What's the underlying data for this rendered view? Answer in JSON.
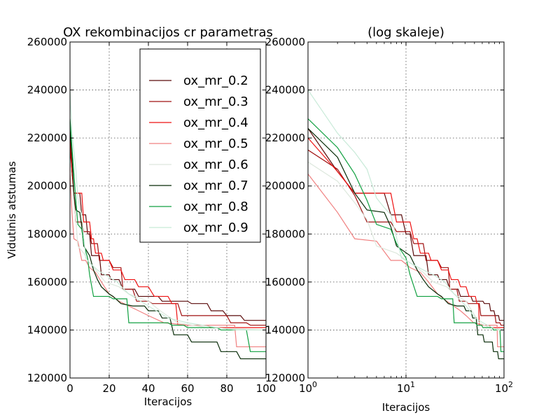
{
  "chart_data": [
    {
      "type": "line",
      "title": "OX rekombinacijos cr parametras",
      "xlabel": "Iteracijos",
      "ylabel": "Vidutinis atstumas",
      "xscale": "linear",
      "xlim": [
        0,
        100
      ],
      "ylim": [
        120000,
        260000
      ],
      "xticks": [
        0,
        20,
        40,
        60,
        80,
        100
      ],
      "xtick_labels": [
        "0",
        "20",
        "40",
        "60",
        "80",
        "100"
      ],
      "yticks": [
        120000,
        140000,
        160000,
        180000,
        200000,
        220000,
        240000,
        260000
      ],
      "ytick_labels": [
        "120000",
        "140000",
        "160000",
        "180000",
        "200000",
        "220000",
        "240000",
        "260000"
      ],
      "grid": true,
      "legend": "upper right"
    },
    {
      "type": "line",
      "title": "(log skaleje)",
      "xlabel": "Iteracijos",
      "ylabel": "",
      "xscale": "log",
      "xlim": [
        1,
        100
      ],
      "ylim": [
        120000,
        260000
      ],
      "xticks": [
        1,
        10,
        100
      ],
      "xtick_labels": [
        [
          "10",
          "0"
        ],
        [
          "10",
          "1"
        ],
        [
          "10",
          "2"
        ]
      ],
      "yticks": [
        120000,
        140000,
        160000,
        180000,
        200000,
        220000,
        240000,
        260000
      ],
      "ytick_labels": [
        "120000",
        "140000",
        "160000",
        "180000",
        "200000",
        "220000",
        "240000",
        "260000"
      ],
      "grid": true
    }
  ],
  "series": [
    {
      "name": "ox_mr_0.2",
      "color": "#5a0a0a",
      "points": [
        [
          0,
          224000
        ],
        [
          1,
          206000
        ],
        [
          2,
          197000
        ],
        [
          5,
          197000
        ],
        [
          6,
          188000
        ],
        [
          8,
          188000
        ],
        [
          9,
          180000
        ],
        [
          10,
          180000
        ],
        [
          11,
          171000
        ],
        [
          15,
          171000
        ],
        [
          16,
          163000
        ],
        [
          20,
          163000
        ],
        [
          21,
          161000
        ],
        [
          25,
          161000
        ],
        [
          27,
          157000
        ],
        [
          33,
          157000
        ],
        [
          35,
          154000
        ],
        [
          45,
          154000
        ],
        [
          47,
          152000
        ],
        [
          60,
          152000
        ],
        [
          62,
          151000
        ],
        [
          70,
          151000
        ],
        [
          72,
          148000
        ],
        [
          78,
          148000
        ],
        [
          80,
          146000
        ],
        [
          87,
          146000
        ],
        [
          89,
          144000
        ],
        [
          100,
          144000
        ]
      ]
    },
    {
      "name": "ox_mr_0.3",
      "color": "#a01010",
      "points": [
        [
          0,
          215000
        ],
        [
          1,
          207000
        ],
        [
          2,
          196000
        ],
        [
          3,
          185000
        ],
        [
          6,
          185000
        ],
        [
          7,
          181000
        ],
        [
          10,
          181000
        ],
        [
          11,
          176000
        ],
        [
          14,
          176000
        ],
        [
          15,
          169000
        ],
        [
          20,
          169000
        ],
        [
          22,
          166000
        ],
        [
          26,
          166000
        ],
        [
          27,
          157000
        ],
        [
          32,
          157000
        ],
        [
          34,
          152000
        ],
        [
          40,
          152000
        ],
        [
          42,
          151000
        ],
        [
          55,
          151000
        ],
        [
          57,
          146000
        ],
        [
          80,
          146000
        ],
        [
          82,
          143000
        ],
        [
          90,
          143000
        ],
        [
          92,
          142000
        ],
        [
          100,
          142000
        ]
      ]
    },
    {
      "name": "ox_mr_0.4",
      "color": "#ee1111",
      "points": [
        [
          0,
          220000
        ],
        [
          1,
          206000
        ],
        [
          2,
          197000
        ],
        [
          6,
          197000
        ],
        [
          7,
          185000
        ],
        [
          10,
          185000
        ],
        [
          11,
          178000
        ],
        [
          12,
          178000
        ],
        [
          13,
          172000
        ],
        [
          16,
          172000
        ],
        [
          17,
          169000
        ],
        [
          20,
          169000
        ],
        [
          22,
          165000
        ],
        [
          26,
          165000
        ],
        [
          28,
          161000
        ],
        [
          33,
          161000
        ],
        [
          35,
          158000
        ],
        [
          40,
          158000
        ],
        [
          43,
          154000
        ],
        [
          50,
          154000
        ],
        [
          52,
          151000
        ],
        [
          54,
          151000
        ],
        [
          55,
          142000
        ],
        [
          70,
          142000
        ],
        [
          72,
          141000
        ],
        [
          100,
          141000
        ]
      ]
    },
    {
      "name": "ox_mr_0.5",
      "color": "#f08080",
      "points": [
        [
          0,
          205000
        ],
        [
          1,
          189000
        ],
        [
          2,
          178000
        ],
        [
          4,
          177000
        ],
        [
          6,
          169000
        ],
        [
          8,
          169000
        ],
        [
          10,
          166000
        ],
        [
          13,
          164000
        ],
        [
          16,
          160000
        ],
        [
          20,
          155000
        ],
        [
          25,
          152000
        ],
        [
          35,
          148000
        ],
        [
          40,
          146000
        ],
        [
          48,
          143000
        ],
        [
          60,
          142000
        ],
        [
          84,
          142000
        ],
        [
          85,
          133000
        ],
        [
          100,
          133000
        ]
      ]
    },
    {
      "name": "ox_mr_0.6",
      "color": "#dde8dd",
      "points": [
        [
          0,
          210000
        ],
        [
          1,
          202000
        ],
        [
          2,
          193000
        ],
        [
          3,
          186000
        ],
        [
          4,
          175000
        ],
        [
          7,
          172000
        ],
        [
          10,
          168000
        ],
        [
          14,
          164000
        ],
        [
          18,
          160000
        ],
        [
          25,
          158000
        ],
        [
          30,
          155000
        ],
        [
          40,
          152000
        ],
        [
          46,
          148000
        ],
        [
          55,
          143000
        ],
        [
          70,
          141000
        ],
        [
          100,
          140000
        ]
      ]
    },
    {
      "name": "ox_mr_0.7",
      "color": "#062a06",
      "points": [
        [
          0,
          224000
        ],
        [
          1,
          212000
        ],
        [
          2,
          197000
        ],
        [
          3,
          190000
        ],
        [
          5,
          189000
        ],
        [
          6,
          183000
        ],
        [
          7,
          175000
        ],
        [
          10,
          171000
        ],
        [
          12,
          165000
        ],
        [
          14,
          161000
        ],
        [
          16,
          158000
        ],
        [
          20,
          155000
        ],
        [
          22,
          154000
        ],
        [
          26,
          151000
        ],
        [
          32,
          150000
        ],
        [
          38,
          150000
        ],
        [
          40,
          148000
        ],
        [
          45,
          148000
        ],
        [
          47,
          145000
        ],
        [
          51,
          145000
        ],
        [
          53,
          138000
        ],
        [
          60,
          138000
        ],
        [
          62,
          135000
        ],
        [
          75,
          135000
        ],
        [
          77,
          131000
        ],
        [
          85,
          131000
        ],
        [
          87,
          128000
        ],
        [
          100,
          128000
        ]
      ]
    },
    {
      "name": "ox_mr_0.8",
      "color": "#10a040",
      "points": [
        [
          0,
          228000
        ],
        [
          1,
          216000
        ],
        [
          2,
          205000
        ],
        [
          3,
          194000
        ],
        [
          4,
          184000
        ],
        [
          6,
          182000
        ],
        [
          7,
          176000
        ],
        [
          9,
          170000
        ],
        [
          10,
          163000
        ],
        [
          12,
          154000
        ],
        [
          20,
          154000
        ],
        [
          22,
          153000
        ],
        [
          29,
          153000
        ],
        [
          30,
          143000
        ],
        [
          50,
          143000
        ],
        [
          52,
          142000
        ],
        [
          58,
          142000
        ],
        [
          60,
          141000
        ],
        [
          75,
          141000
        ],
        [
          77,
          140000
        ],
        [
          90,
          140000
        ],
        [
          92,
          131000
        ],
        [
          100,
          131000
        ]
      ]
    },
    {
      "name": "ox_mr_0.9",
      "color": "#c8ead8",
      "points": [
        [
          0,
          240000
        ],
        [
          1,
          222000
        ],
        [
          2,
          214000
        ],
        [
          3,
          207000
        ],
        [
          4,
          195000
        ],
        [
          5,
          191000
        ],
        [
          6,
          188000
        ],
        [
          8,
          170000
        ],
        [
          10,
          168000
        ],
        [
          14,
          165000
        ],
        [
          18,
          163000
        ],
        [
          24,
          160000
        ],
        [
          30,
          155000
        ],
        [
          40,
          150000
        ],
        [
          50,
          145000
        ],
        [
          60,
          143000
        ],
        [
          75,
          141000
        ],
        [
          85,
          140000
        ],
        [
          100,
          140000
        ]
      ]
    }
  ]
}
